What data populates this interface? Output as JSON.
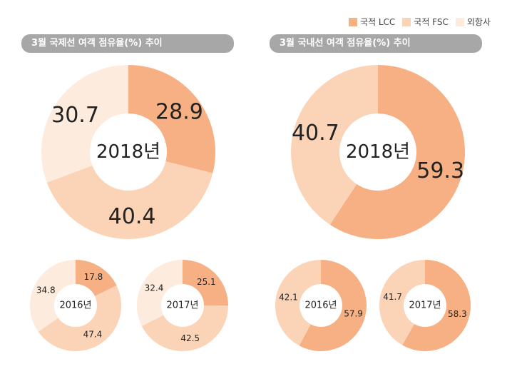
{
  "legend": [
    {
      "label": "국적 LCC",
      "color": "#f6b083"
    },
    {
      "label": "국적 FSC",
      "color": "#fbd4b8"
    },
    {
      "label": "외항사",
      "color": "#fdebdd"
    }
  ],
  "panels": {
    "international": {
      "title": "3월 국제선 여객 점유율(%) 추이"
    },
    "domestic": {
      "title": "3월 국내선 여객 점유율(%) 추이"
    }
  },
  "chart_data": [
    {
      "type": "pie",
      "group": "international",
      "title": "2018년",
      "categories": [
        "국적 LCC",
        "국적 FSC",
        "외항사"
      ],
      "values": [
        28.9,
        40.4,
        30.7
      ],
      "labels": [
        "28.9",
        "40.4",
        "30.7"
      ]
    },
    {
      "type": "pie",
      "group": "international",
      "title": "2016년",
      "categories": [
        "국적 LCC",
        "국적 FSC",
        "외항사"
      ],
      "values": [
        17.8,
        47.4,
        34.8
      ],
      "labels": [
        "17.8",
        "47.4",
        "34.8"
      ]
    },
    {
      "type": "pie",
      "group": "international",
      "title": "2017년",
      "categories": [
        "국적 LCC",
        "국적 FSC",
        "외항사"
      ],
      "values": [
        25.1,
        42.5,
        32.4
      ],
      "labels": [
        "25.1",
        "42.5",
        "32.4"
      ]
    },
    {
      "type": "pie",
      "group": "domestic",
      "title": "2018년",
      "categories": [
        "국적 LCC",
        "국적 FSC"
      ],
      "values": [
        59.3,
        40.7
      ],
      "labels": [
        "59.3",
        "40.7"
      ]
    },
    {
      "type": "pie",
      "group": "domestic",
      "title": "2016년",
      "categories": [
        "국적 LCC",
        "국적 FSC"
      ],
      "values": [
        57.9,
        42.1
      ],
      "labels": [
        "57.9",
        "42.1"
      ]
    },
    {
      "type": "pie",
      "group": "domestic",
      "title": "2017년",
      "categories": [
        "국적 LCC",
        "국적 FSC"
      ],
      "values": [
        58.3,
        41.7
      ],
      "labels": [
        "58.3",
        "41.7"
      ]
    }
  ]
}
